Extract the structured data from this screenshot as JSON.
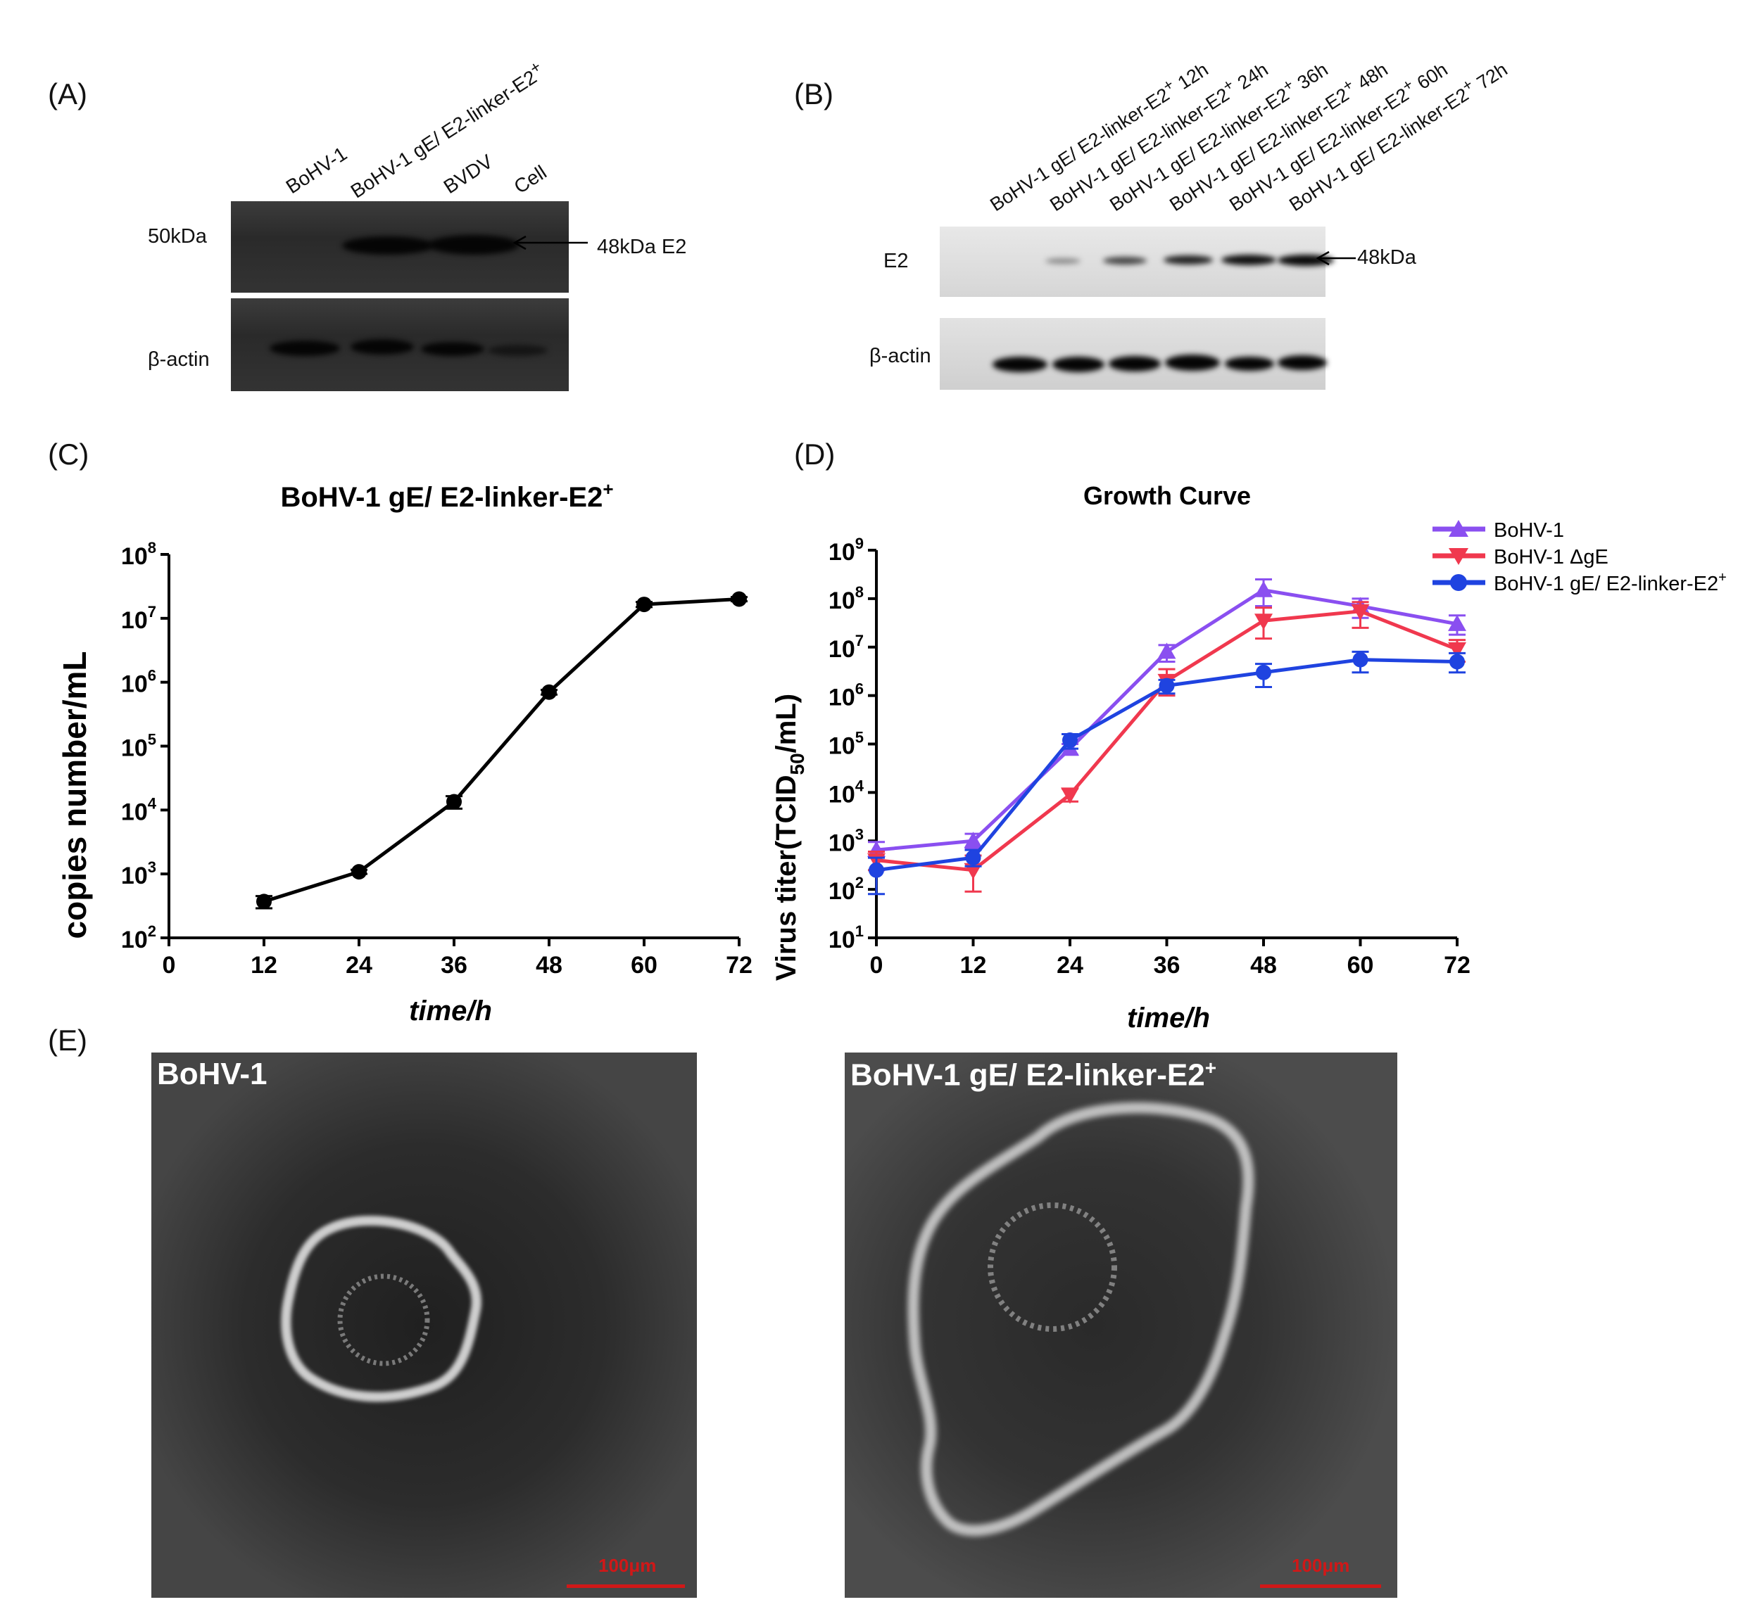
{
  "panels": {
    "a": "(A)",
    "b": "(B)",
    "c": "(C)",
    "d": "(D)",
    "e": "(E)"
  },
  "blot_a": {
    "lanes": [
      "BoHV-1",
      "BoHV-1 gE/ E2-linker-E2",
      "BVDV",
      "Cell"
    ],
    "lane_sup": "+",
    "marker_label": "50kDa",
    "arrow_label": "48kDa  E2",
    "loading_label": "β-actin"
  },
  "blot_b": {
    "lanes": [
      "BoHV-1 gE/ E2-linker-E2",
      "BoHV-1 gE/ E2-linker-E2",
      "BoHV-1 gE/ E2-linker-E2",
      "BoHV-1 gE/ E2-linker-E2",
      "BoHV-1 gE/ E2-linker-E2",
      "BoHV-1 gE/ E2-linker-E2"
    ],
    "lane_times": [
      "12h",
      "24h",
      "36h",
      "48h",
      "60h",
      "72h"
    ],
    "lane_sup": "+",
    "protein_label": "E2",
    "arrow_label": "48kDa",
    "loading_label": "β-actin"
  },
  "chart_data": [
    {
      "type": "line",
      "title": "BoHV-1 gE/ E2-linker-E2",
      "title_sup": "+",
      "xlabel": "time/h",
      "ylabel": "copies number/mL",
      "x": [
        12,
        24,
        36,
        48,
        60,
        72
      ],
      "xticks": [
        "0",
        "12",
        "24",
        "36",
        "48",
        "60",
        "72"
      ],
      "xlim": [
        0,
        72
      ],
      "yscale": "log",
      "ylim": [
        100,
        100000000
      ],
      "ytick_exponents": [
        "2",
        "3",
        "4",
        "5",
        "6",
        "7",
        "8"
      ],
      "ytick_base": "10",
      "series": [
        {
          "values": [
            370,
            1080,
            13500,
            700000,
            16500000,
            20000000
          ],
          "err": [
            80,
            80,
            3000,
            60000,
            1500000,
            1500000
          ],
          "color": "#000000",
          "marker": "circle"
        }
      ],
      "grid": false
    },
    {
      "type": "line",
      "title": "Growth Curve",
      "xlabel": "time/h",
      "ylabel_main": "Virus titer(TCID",
      "ylabel_sub": "50",
      "ylabel_end": "/mL)",
      "x": [
        0,
        12,
        24,
        36,
        48,
        60,
        72
      ],
      "xticks": [
        "0",
        "12",
        "24",
        "36",
        "48",
        "60",
        "72"
      ],
      "xlim": [
        0,
        72
      ],
      "yscale": "log",
      "ylim": [
        10,
        1000000000
      ],
      "ytick_exponents": [
        "1",
        "2",
        "3",
        "4",
        "5",
        "6",
        "7",
        "8",
        "9"
      ],
      "ytick_base": "10",
      "legend_position": "top-right",
      "series": [
        {
          "name": "BoHV-1",
          "values": [
            650,
            1000,
            80000,
            8000000,
            150000000,
            70000000,
            30000000
          ],
          "err_up": [
            300,
            400,
            20000,
            3000000,
            100000000,
            30000000,
            15000000
          ],
          "err_down": [
            200,
            300,
            20000,
            3000000,
            80000000,
            30000000,
            12000000
          ],
          "color": "#8a4ff0",
          "marker": "triangle-up"
        },
        {
          "name": "BoHV-1 ΔgE",
          "values": [
            400,
            250,
            9000,
            2000000,
            35000000,
            55000000,
            9000000
          ],
          "err_up": [
            200,
            250,
            3000,
            1500000,
            30000000,
            30000000,
            5000000
          ],
          "err_down": [
            150,
            160,
            2500,
            1000000,
            20000000,
            30000000,
            4000000
          ],
          "color": "#f0384e",
          "marker": "triangle-down"
        },
        {
          "name": "BoHV-1 gE/ E2-linker-E2",
          "name_sup": "+",
          "values": [
            250,
            450,
            120000,
            1600000,
            3000000,
            5500000,
            5000000
          ],
          "err_up": [
            200,
            200,
            40000,
            500000,
            1500000,
            2500000,
            2500000
          ],
          "err_down": [
            170,
            150,
            40000,
            500000,
            1500000,
            2500000,
            2000000
          ],
          "color": "#1f43e0",
          "marker": "circle"
        }
      ],
      "grid": false
    }
  ],
  "micrographs": {
    "left_title": "BoHV-1",
    "right_title": "BoHV-1 gE/ E2-linker-E2",
    "right_title_sup": "+",
    "scale_label": "100μm"
  }
}
